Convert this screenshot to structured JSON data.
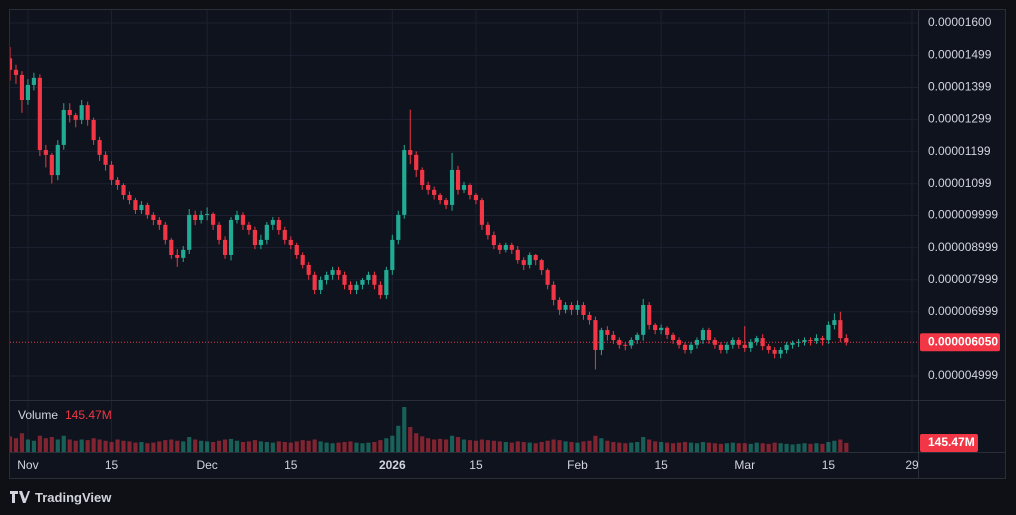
{
  "chart_data": {
    "type": "candlestick",
    "x": [
      "2025-10-29",
      "2025-10-30",
      "2025-10-31",
      "2025-11-01",
      "2025-11-02",
      "2025-11-03",
      "2025-11-04",
      "2025-11-05",
      "2025-11-06",
      "2025-11-07",
      "2025-11-08",
      "2025-11-09",
      "2025-11-10",
      "2025-11-11",
      "2025-11-12",
      "2025-11-13",
      "2025-11-14",
      "2025-11-15",
      "2025-11-16",
      "2025-11-17",
      "2025-11-18",
      "2025-11-19",
      "2025-11-20",
      "2025-11-21",
      "2025-11-22",
      "2025-11-23",
      "2025-11-24",
      "2025-11-25",
      "2025-11-26",
      "2025-11-27",
      "2025-11-28",
      "2025-11-29",
      "2025-11-30",
      "2025-12-01",
      "2025-12-02",
      "2025-12-03",
      "2025-12-04",
      "2025-12-05",
      "2025-12-06",
      "2025-12-07",
      "2025-12-08",
      "2025-12-09",
      "2025-12-10",
      "2025-12-11",
      "2025-12-12",
      "2025-12-13",
      "2025-12-14",
      "2025-12-15",
      "2025-12-16",
      "2025-12-17",
      "2025-12-18",
      "2025-12-19",
      "2025-12-20",
      "2025-12-21",
      "2025-12-22",
      "2025-12-23",
      "2025-12-24",
      "2025-12-25",
      "2025-12-26",
      "2025-12-27",
      "2025-12-28",
      "2025-12-29",
      "2025-12-30",
      "2025-12-31",
      "2026-01-01",
      "2026-01-02",
      "2026-01-03",
      "2026-01-04",
      "2026-01-05",
      "2026-01-06",
      "2026-01-07",
      "2026-01-08",
      "2026-01-09",
      "2026-01-10",
      "2026-01-11",
      "2026-01-12",
      "2026-01-13",
      "2026-01-14",
      "2026-01-15",
      "2026-01-16",
      "2026-01-17",
      "2026-01-18",
      "2026-01-19",
      "2026-01-20",
      "2026-01-21",
      "2026-01-22",
      "2026-01-23",
      "2026-01-24",
      "2026-01-25",
      "2026-01-26",
      "2026-01-27",
      "2026-01-28",
      "2026-01-29",
      "2026-01-30",
      "2026-01-31",
      "2026-02-01",
      "2026-02-02",
      "2026-02-03",
      "2026-02-04",
      "2026-02-05",
      "2026-02-06",
      "2026-02-07",
      "2026-02-08",
      "2026-02-09",
      "2026-02-10",
      "2026-02-11",
      "2026-02-12",
      "2026-02-13",
      "2026-02-14",
      "2026-02-15",
      "2026-02-16",
      "2026-02-17",
      "2026-02-18",
      "2026-02-19",
      "2026-02-20",
      "2026-02-21",
      "2026-02-22",
      "2026-02-23",
      "2026-02-24",
      "2026-02-25",
      "2026-02-26",
      "2026-02-27",
      "2026-02-28",
      "2026-03-01",
      "2026-03-02",
      "2026-03-03",
      "2026-03-04",
      "2026-03-05",
      "2026-03-06",
      "2026-03-07",
      "2026-03-08",
      "2026-03-09",
      "2026-03-10",
      "2026-03-11",
      "2026-03-12",
      "2026-03-13",
      "2026-03-14",
      "2026-03-15",
      "2026-03-16",
      "2026-03-17",
      "2026-03-18"
    ],
    "open": [
      1.49e-05,
      1.454e-05,
      1.438e-05,
      1.36e-05,
      1.407e-05,
      1.429e-05,
      1.204e-05,
      1.189e-05,
      1.126e-05,
      1.22e-05,
      1.329e-05,
      1.313e-05,
      1.298e-05,
      1.344e-05,
      1.298e-05,
      1.235e-05,
      1.189e-05,
      1.158e-05,
      1.111e-05,
      1.095e-05,
      1.064e-05,
      1.048e-05,
      1.017e-05,
      1.033e-05,
      1.002e-05,
      9.86e-06,
      9.71e-06,
      9.24e-06,
      8.77e-06,
      8.68e-06,
      8.93e-06,
      1.002e-05,
      9.86e-06,
      1.002e-05,
      1.005e-05,
      9.71e-06,
      9.24e-06,
      8.77e-06,
      9.86e-06,
      1.002e-05,
      9.71e-06,
      9.55e-06,
      9.08e-06,
      9.24e-06,
      9.71e-06,
      9.86e-06,
      9.55e-06,
      9.24e-06,
      9.08e-06,
      8.77e-06,
      8.46e-06,
      8.15e-06,
      7.68e-06,
      7.99e-06,
      8.15e-06,
      8.3e-06,
      8.15e-06,
      7.84e-06,
      7.68e-06,
      7.84e-06,
      7.99e-06,
      8.15e-06,
      7.84e-06,
      7.52e-06,
      8.3e-06,
      9.24e-06,
      1.002e-05,
      1.204e-05,
      1.189e-05,
      1.142e-05,
      1.095e-05,
      1.08e-05,
      1.064e-05,
      1.048e-05,
      1.033e-05,
      1.142e-05,
      1.08e-05,
      1.095e-05,
      1.064e-05,
      1.048e-05,
      9.71e-06,
      9.39e-06,
      9.08e-06,
      8.93e-06,
      9.08e-06,
      8.93e-06,
      8.61e-06,
      8.46e-06,
      8.77e-06,
      8.61e-06,
      8.3e-06,
      7.84e-06,
      7.37e-06,
      7.06e-06,
      7.21e-06,
      7.06e-06,
      7.21e-06,
      6.9e-06,
      6.74e-06,
      5.81e-06,
      6.43e-06,
      6.28e-06,
      6.12e-06,
      5.97e-06,
      5.95e-06,
      6.12e-06,
      6.28e-06,
      7.21e-06,
      6.59e-06,
      6.43e-06,
      6.5e-06,
      6.28e-06,
      6.12e-06,
      5.97e-06,
      5.81e-06,
      5.97e-06,
      6.12e-06,
      6.43e-06,
      6.12e-06,
      5.97e-06,
      5.81e-06,
      5.97e-06,
      6.12e-06,
      5.97e-06,
      5.87e-06,
      6.06e-06,
      6.18e-06,
      5.93e-06,
      5.81e-06,
      5.69e-06,
      5.81e-06,
      5.97e-06,
      6.03e-06,
      6.06e-06,
      6.12e-06,
      6.09e-06,
      6.18e-06,
      6.12e-06,
      6.59e-06,
      6.74e-06,
      6.18e-06
    ],
    "high": [
      1.525e-05,
      1.47e-05,
      1.45e-05,
      1.425e-05,
      1.445e-05,
      1.44e-05,
      1.22e-05,
      1.195e-05,
      1.235e-05,
      1.35e-05,
      1.35e-05,
      1.32e-05,
      1.36e-05,
      1.355e-05,
      1.305e-05,
      1.245e-05,
      1.2e-05,
      1.17e-05,
      1.12e-05,
      1.1e-05,
      1.075e-05,
      1.055e-05,
      1.045e-05,
      1.04e-05,
      1.01e-05,
      9.95e-06,
      9.8e-06,
      9.3e-06,
      8.95e-06,
      9.05e-06,
      1.02e-05,
      1.015e-05,
      1.015e-05,
      1.025e-05,
      1.01e-05,
      9.8e-06,
      9.35e-06,
      9.95e-06,
      1.015e-05,
      1.01e-05,
      9.8e-06,
      9.65e-06,
      9.4e-06,
      9.8e-06,
      9.95e-06,
      9.95e-06,
      9.65e-06,
      9.35e-06,
      9.15e-06,
      8.85e-06,
      8.55e-06,
      8.25e-06,
      8.1e-06,
      8.25e-06,
      8.4e-06,
      8.4e-06,
      8.25e-06,
      7.95e-06,
      7.95e-06,
      8.05e-06,
      8.25e-06,
      8.25e-06,
      7.95e-06,
      8.4e-06,
      9.4e-06,
      1.015e-05,
      1.22e-05,
      1.33e-05,
      1.2e-05,
      1.15e-05,
      1.105e-05,
      1.09e-05,
      1.07e-05,
      1.055e-05,
      1.195e-05,
      1.155e-05,
      1.105e-05,
      1.1e-05,
      1.07e-05,
      1.055e-05,
      9.8e-06,
      9.5e-06,
      9.15e-06,
      9.15e-06,
      9.15e-06,
      9.05e-06,
      8.7e-06,
      8.85e-06,
      8.8e-06,
      8.65e-06,
      8.35e-06,
      7.95e-06,
      7.45e-06,
      7.3e-06,
      7.3e-06,
      7.35e-06,
      7.3e-06,
      7e-06,
      6.85e-06,
      6.5e-06,
      6.55e-06,
      6.4e-06,
      6.2e-06,
      6.05e-06,
      6.2e-06,
      6.35e-06,
      7.4e-06,
      7.3e-06,
      6.65e-06,
      6.6e-06,
      6.55e-06,
      6.35e-06,
      6.2e-06,
      6.05e-06,
      6.05e-06,
      6.2e-06,
      6.5e-06,
      6.5e-06,
      6.2e-06,
      6.05e-06,
      6.05e-06,
      6.2e-06,
      6.2e-06,
      6.55e-06,
      6.15e-06,
      6.25e-06,
      6.3e-06,
      6e-06,
      5.9e-06,
      5.9e-06,
      6.05e-06,
      6.1e-06,
      6.15e-06,
      6.2e-06,
      6.2e-06,
      6.3e-06,
      6.25e-06,
      6.7e-06,
      6.95e-06,
      7e-06,
      6.3e-06
    ],
    "low": [
      1.42e-05,
      1.41e-05,
      1.32e-05,
      1.345e-05,
      1.39e-05,
      1.185e-05,
      1.15e-05,
      1.1e-05,
      1.11e-05,
      1.205e-05,
      1.29e-05,
      1.275e-05,
      1.285e-05,
      1.28e-05,
      1.22e-05,
      1.17e-05,
      1.14e-05,
      1.095e-05,
      1.08e-05,
      1.05e-05,
      1.035e-05,
      1.005e-05,
      1.005e-05,
      9.9e-06,
      9.7e-06,
      9.55e-06,
      9.1e-06,
      8.65e-06,
      8.4e-06,
      8.55e-06,
      8.8e-06,
      9.7e-06,
      9.75e-06,
      9.85e-06,
      9.55e-06,
      9.1e-06,
      8.65e-06,
      8.6e-06,
      9.75e-06,
      9.55e-06,
      9.4e-06,
      8.95e-06,
      8.95e-06,
      9.1e-06,
      9.55e-06,
      9.4e-06,
      9.1e-06,
      8.95e-06,
      8.65e-06,
      8.35e-06,
      8e-06,
      7.55e-06,
      7.55e-06,
      7.85e-06,
      8e-06,
      8e-06,
      7.7e-06,
      7.55e-06,
      7.55e-06,
      7.7e-06,
      7.85e-06,
      7.7e-06,
      7.4e-06,
      7.4e-06,
      8.15e-06,
      9.1e-06,
      9.9e-06,
      1.16e-05,
      1.12e-05,
      1.08e-05,
      1.065e-05,
      1.05e-05,
      1.035e-05,
      1.02e-05,
      1.015e-05,
      1.065e-05,
      1.07e-05,
      1.05e-05,
      1.035e-05,
      9.55e-06,
      9.25e-06,
      8.95e-06,
      8.8e-06,
      8.85e-06,
      8.8e-06,
      8.5e-06,
      8.3e-06,
      8.35e-06,
      8.45e-06,
      8.15e-06,
      7.7e-06,
      7.2e-06,
      6.9e-06,
      6.95e-06,
      6.9e-06,
      6.9e-06,
      6.75e-06,
      6.6e-06,
      5.2e-06,
      5.65e-06,
      6.1e-06,
      6e-06,
      5.85e-06,
      5.8e-06,
      5.85e-06,
      6e-06,
      6.1e-06,
      6.45e-06,
      6.3e-06,
      6.3e-06,
      6.15e-06,
      6e-06,
      5.85e-06,
      5.7e-06,
      5.7e-06,
      5.85e-06,
      6e-06,
      6e-06,
      5.85e-06,
      5.7e-06,
      5.7e-06,
      5.85e-06,
      5.85e-06,
      5.75e-06,
      5.75e-06,
      5.95e-06,
      5.8e-06,
      5.7e-06,
      5.55e-06,
      5.55e-06,
      5.7e-06,
      5.85e-06,
      5.9e-06,
      5.95e-06,
      5.95e-06,
      6e-06,
      5.95e-06,
      6e-06,
      6.45e-06,
      6.05e-06,
      5.95e-06
    ],
    "close": [
      1.454e-05,
      1.438e-05,
      1.36e-05,
      1.407e-05,
      1.429e-05,
      1.204e-05,
      1.189e-05,
      1.126e-05,
      1.22e-05,
      1.329e-05,
      1.313e-05,
      1.298e-05,
      1.344e-05,
      1.298e-05,
      1.235e-05,
      1.189e-05,
      1.158e-05,
      1.111e-05,
      1.095e-05,
      1.064e-05,
      1.048e-05,
      1.017e-05,
      1.033e-05,
      1.002e-05,
      9.86e-06,
      9.71e-06,
      9.24e-06,
      8.77e-06,
      8.68e-06,
      8.93e-06,
      1.002e-05,
      9.86e-06,
      1.002e-05,
      1.005e-05,
      9.71e-06,
      9.24e-06,
      8.77e-06,
      9.86e-06,
      1.002e-05,
      9.71e-06,
      9.55e-06,
      9.08e-06,
      9.24e-06,
      9.71e-06,
      9.86e-06,
      9.55e-06,
      9.24e-06,
      9.08e-06,
      8.77e-06,
      8.46e-06,
      8.15e-06,
      7.68e-06,
      7.99e-06,
      8.15e-06,
      8.3e-06,
      8.15e-06,
      7.84e-06,
      7.68e-06,
      7.84e-06,
      7.99e-06,
      8.15e-06,
      7.84e-06,
      7.52e-06,
      8.3e-06,
      9.24e-06,
      1.002e-05,
      1.204e-05,
      1.189e-05,
      1.142e-05,
      1.095e-05,
      1.08e-05,
      1.064e-05,
      1.048e-05,
      1.033e-05,
      1.142e-05,
      1.08e-05,
      1.095e-05,
      1.064e-05,
      1.048e-05,
      9.71e-06,
      9.39e-06,
      9.08e-06,
      8.93e-06,
      9.08e-06,
      8.93e-06,
      8.61e-06,
      8.46e-06,
      8.77e-06,
      8.61e-06,
      8.3e-06,
      7.84e-06,
      7.37e-06,
      7.06e-06,
      7.21e-06,
      7.06e-06,
      7.21e-06,
      6.9e-06,
      6.74e-06,
      5.81e-06,
      6.43e-06,
      6.28e-06,
      6.12e-06,
      5.97e-06,
      5.95e-06,
      6.12e-06,
      6.28e-06,
      7.21e-06,
      6.59e-06,
      6.43e-06,
      6.5e-06,
      6.28e-06,
      6.12e-06,
      5.97e-06,
      5.81e-06,
      5.97e-06,
      6.12e-06,
      6.43e-06,
      6.12e-06,
      5.97e-06,
      5.81e-06,
      5.97e-06,
      6.12e-06,
      5.97e-06,
      5.87e-06,
      6.06e-06,
      6.18e-06,
      5.93e-06,
      5.81e-06,
      5.69e-06,
      5.81e-06,
      5.97e-06,
      6.03e-06,
      6.06e-06,
      6.12e-06,
      6.09e-06,
      6.18e-06,
      6.12e-06,
      6.59e-06,
      6.74e-06,
      6.18e-06,
      6.05e-06
    ],
    "volume": [
      250000000.0,
      220000000.0,
      300000000.0,
      200000000.0,
      180000000.0,
      260000000.0,
      220000000.0,
      240000000.0,
      200000000.0,
      260000000.0,
      200000000.0,
      180000000.0,
      200000000.0,
      190000000.0,
      220000000.0,
      200000000.0,
      180000000.0,
      160000000.0,
      200000000.0,
      180000000.0,
      170000000.0,
      150000000.0,
      160000000.0,
      140000000.0,
      150000000.0,
      170000000.0,
      190000000.0,
      200000000.0,
      180000000.0,
      170000000.0,
      240000000.0,
      200000000.0,
      180000000.0,
      170000000.0,
      160000000.0,
      180000000.0,
      200000000.0,
      210000000.0,
      180000000.0,
      160000000.0,
      170000000.0,
      190000000.0,
      170000000.0,
      160000000.0,
      150000000.0,
      170000000.0,
      160000000.0,
      150000000.0,
      170000000.0,
      190000000.0,
      180000000.0,
      200000000.0,
      170000000.0,
      150000000.0,
      140000000.0,
      150000000.0,
      160000000.0,
      170000000.0,
      150000000.0,
      140000000.0,
      150000000.0,
      160000000.0,
      190000000.0,
      220000000.0,
      260000000.0,
      420000000.0,
      720000000.0,
      400000000.0,
      300000000.0,
      250000000.0,
      220000000.0,
      200000000.0,
      210000000.0,
      200000000.0,
      260000000.0,
      240000000.0,
      200000000.0,
      190000000.0,
      180000000.0,
      200000000.0,
      190000000.0,
      180000000.0,
      170000000.0,
      160000000.0,
      150000000.0,
      170000000.0,
      160000000.0,
      150000000.0,
      140000000.0,
      160000000.0,
      180000000.0,
      200000000.0,
      190000000.0,
      170000000.0,
      160000000.0,
      150000000.0,
      170000000.0,
      180000000.0,
      260000000.0,
      220000000.0,
      180000000.0,
      160000000.0,
      150000000.0,
      140000000.0,
      150000000.0,
      160000000.0,
      240000000.0,
      200000000.0,
      170000000.0,
      160000000.0,
      150000000.0,
      140000000.0,
      150000000.0,
      160000000.0,
      150000000.0,
      140000000.0,
      160000000.0,
      150000000.0,
      140000000.0,
      130000000.0,
      140000000.0,
      150000000.0,
      140000000.0,
      140000000.0,
      130000000.0,
      150000000.0,
      140000000.0,
      130000000.0,
      150000000.0,
      140000000.0,
      130000000.0,
      120000000.0,
      130000000.0,
      140000000.0,
      130000000.0,
      140000000.0,
      130000000.0,
      160000000.0,
      180000000.0,
      200000000.0,
      145470000.0
    ],
    "up_color": "#22ab94",
    "down_color": "#f23645",
    "xlim": [
      "2025-10-29",
      "2026-03-30"
    ],
    "xticks": [
      {
        "value": "2025-11-01",
        "label": "Nov"
      },
      {
        "value": "2025-11-15",
        "label": "15"
      },
      {
        "value": "2025-12-01",
        "label": "Dec"
      },
      {
        "value": "2025-12-15",
        "label": "15"
      },
      {
        "value": "2026-01-01",
        "label": "2026"
      },
      {
        "value": "2026-01-15",
        "label": "15"
      },
      {
        "value": "2026-02-01",
        "label": "Feb"
      },
      {
        "value": "2026-02-15",
        "label": "15"
      },
      {
        "value": "2026-03-01",
        "label": "Mar"
      },
      {
        "value": "2026-03-15",
        "label": "15"
      },
      {
        "value": "2026-03-29",
        "label": "29"
      }
    ],
    "ylim": [
      4.25e-06,
      1.6405e-05
    ],
    "yticks": [
      {
        "value": 1.6e-05,
        "label": "0.00001600"
      },
      {
        "value": 1.499e-05,
        "label": "0.00001499"
      },
      {
        "value": 1.399e-05,
        "label": "0.00001399"
      },
      {
        "value": 1.299e-05,
        "label": "0.00001299"
      },
      {
        "value": 1.199e-05,
        "label": "0.00001199"
      },
      {
        "value": 1.099e-05,
        "label": "0.00001099"
      },
      {
        "value": 9.999e-06,
        "label": "0.000009999"
      },
      {
        "value": 8.999e-06,
        "label": "0.000008999"
      },
      {
        "value": 7.999e-06,
        "label": "0.000007999"
      },
      {
        "value": 6.999e-06,
        "label": "0.000006999"
      },
      {
        "value": 4.999e-06,
        "label": "0.000004999"
      }
    ],
    "grid": true,
    "last_price": {
      "value": 6.05e-06,
      "label": "0.000006050"
    },
    "volume_title": "Volume",
    "last_volume": {
      "value": 145470000.0,
      "label": "145.47M"
    }
  },
  "footer": "TradingView"
}
